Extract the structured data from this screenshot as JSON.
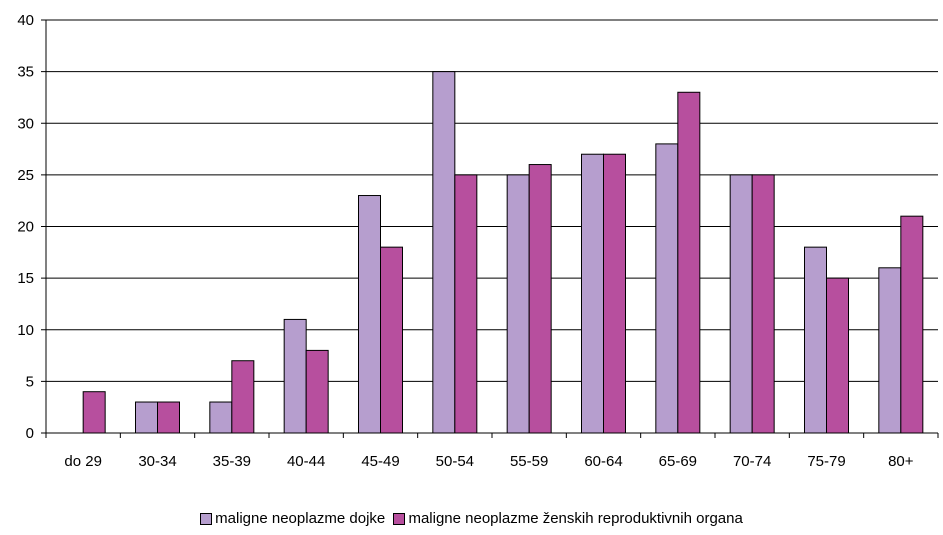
{
  "chart_data": {
    "type": "bar",
    "categories": [
      "do 29",
      "30-34",
      "35-39",
      "40-44",
      "45-49",
      "50-54",
      "55-59",
      "60-64",
      "65-69",
      "70-74",
      "75-79",
      "80+"
    ],
    "series": [
      {
        "name": "maligne neoplazme dojke",
        "color": "#b69ece",
        "values": [
          0,
          3,
          3,
          11,
          23,
          35,
          25,
          27,
          28,
          25,
          18,
          16
        ]
      },
      {
        "name": "maligne neoplazme ženskih reproduktivnih organa",
        "color": "#b74f9e",
        "values": [
          4,
          3,
          7,
          8,
          18,
          25,
          26,
          27,
          33,
          25,
          15,
          21
        ]
      }
    ],
    "ylim": [
      0,
      40
    ],
    "yticks": [
      0,
      5,
      10,
      15,
      20,
      25,
      30,
      35,
      40
    ],
    "grid": true,
    "legend_position": "bottom"
  }
}
